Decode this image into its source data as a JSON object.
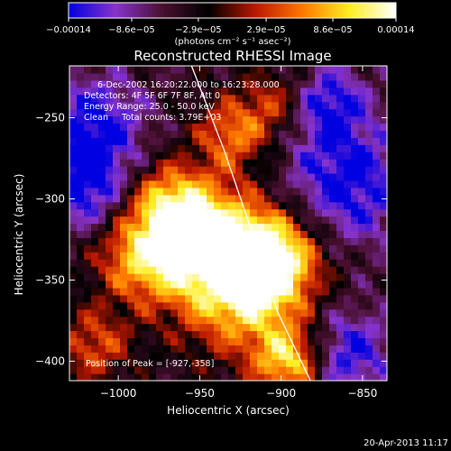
{
  "chart_data": {
    "type": "heatmap",
    "title": "Reconstructed RHESSI Image",
    "xlabel": "Heliocentric X (arcsec)",
    "ylabel": "Heliocentric Y (arcsec)",
    "xlim": [
      -1030,
      -835
    ],
    "ylim": [
      -412,
      -218
    ],
    "xticks": [
      {
        "value": -1000,
        "label": "−1000"
      },
      {
        "value": -950,
        "label": "−950"
      },
      {
        "value": -900,
        "label": "−900"
      },
      {
        "value": -850,
        "label": "−850"
      }
    ],
    "yticks": [
      {
        "value": -250,
        "label": "−250"
      },
      {
        "value": -300,
        "label": "−300"
      },
      {
        "value": -350,
        "label": "−350"
      },
      {
        "value": -400,
        "label": "−400"
      }
    ],
    "colorbar": {
      "min": -0.00014,
      "max": 0.00014,
      "ticks": [
        {
          "value": -0.00014,
          "label": "−0.00014"
        },
        {
          "value": -8.6e-05,
          "label": "−8.6e−05"
        },
        {
          "value": -2.9e-05,
          "label": "−2.9e−05"
        },
        {
          "value": 2.9e-05,
          "label": "2.9e−05"
        },
        {
          "value": 8.6e-05,
          "label": "8.6e−05"
        },
        {
          "value": 0.00014,
          "label": "0.00014"
        }
      ],
      "unit_label": "(photons cm⁻² s⁻¹ asec⁻²)",
      "palette": [
        "#0000e0",
        "#8833cc",
        "#4a1030",
        "#000000",
        "#bb1800",
        "#ff7700",
        "#ffee22",
        "#ffffff"
      ]
    },
    "annotations": [
      "6-Dec-2002 16:20:22.000 to 16:23:28.000",
      "Detectors: 4F 5F 6F 7F 8F, Att 0",
      "Energy Range: 25.0 - 50.0 keV",
      "Clean     Total counts: 3.79E+03"
    ],
    "peak_label": "Position of Peak = [-927,-358]",
    "limb_curve": [
      [
        -955,
        -218
      ],
      [
        -935,
        -270
      ],
      [
        -918,
        -320
      ],
      [
        -902,
        -370
      ],
      [
        -882,
        -412
      ]
    ],
    "bright_sources": [
      {
        "x": -925,
        "y": -352,
        "intensity": 1.0,
        "sigma": 28
      },
      {
        "x": -950,
        "y": -320,
        "intensity": 0.85,
        "sigma": 22
      },
      {
        "x": -985,
        "y": -335,
        "intensity": 0.75,
        "sigma": 20
      },
      {
        "x": -905,
        "y": -335,
        "intensity": 0.8,
        "sigma": 20
      },
      {
        "x": -930,
        "y": -260,
        "intensity": 0.6,
        "sigma": 16
      },
      {
        "x": -895,
        "y": -400,
        "intensity": 0.85,
        "sigma": 15
      },
      {
        "x": -970,
        "y": -300,
        "intensity": 0.55,
        "sigma": 16
      },
      {
        "x": -1015,
        "y": -390,
        "intensity": 0.5,
        "sigma": 16
      },
      {
        "x": -905,
        "y": -240,
        "intensity": 0.4,
        "sigma": 14
      }
    ],
    "dim_regions": [
      {
        "x": -1015,
        "y": -255,
        "intensity": -0.6,
        "sigma": 22
      },
      {
        "x": -860,
        "y": -290,
        "intensity": -0.6,
        "sigma": 28
      },
      {
        "x": -860,
        "y": -395,
        "intensity": -0.55,
        "sigma": 20
      },
      {
        "x": -1020,
        "y": -295,
        "intensity": -0.55,
        "sigma": 18
      },
      {
        "x": -870,
        "y": -240,
        "intensity": -0.5,
        "sigma": 16
      }
    ]
  },
  "footer": {
    "timestamp": "20-Apr-2013 11:17"
  }
}
